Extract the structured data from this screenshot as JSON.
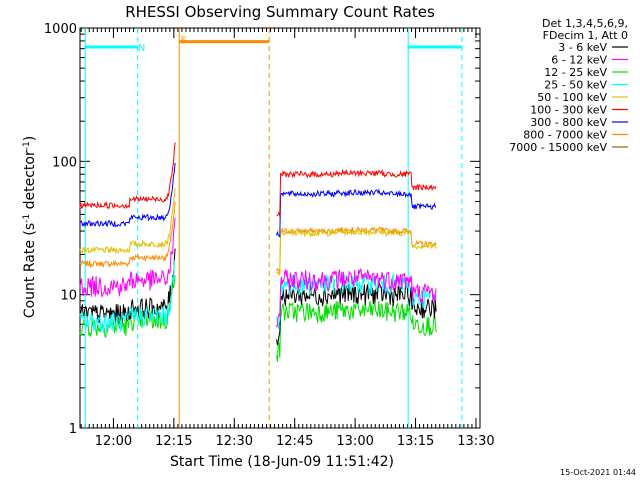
{
  "chart_data": {
    "type": "line",
    "title": "RHESSI Observing Summary Count Rates",
    "xlabel": "Start Time (18-Jun-09 11:51:42)",
    "ylabel_main": "Count Rate (s",
    "ylabel_sup1": "-1",
    "ylabel_mid": " detector",
    "ylabel_sup2": "-1",
    "ylabel_end": ")",
    "yscale": "log",
    "ylim": [
      1,
      1000
    ],
    "xlim": [
      "11:51:42",
      "13:31:00"
    ],
    "x_ticks": [
      {
        "t": "12:00",
        "label": "12:00"
      },
      {
        "t": "12:15",
        "label": "12:15"
      },
      {
        "t": "12:30",
        "label": "12:30"
      },
      {
        "t": "12:45",
        "label": "12:45"
      },
      {
        "t": "13:00",
        "label": "13:00"
      },
      {
        "t": "13:15",
        "label": "13:15"
      },
      {
        "t": "13:30",
        "label": "13:30"
      }
    ],
    "y_ticks": [
      {
        "v": 1,
        "label": "1"
      },
      {
        "v": 10,
        "label": "10"
      },
      {
        "v": 100,
        "label": "100"
      },
      {
        "v": 1000,
        "label": "1000"
      }
    ],
    "legend_header": [
      "Det 1,3,4,5,6,9,",
      "FDecim 1, Att 0"
    ],
    "series": [
      {
        "name": "3 - 6 keV",
        "color": "#000000"
      },
      {
        "name": "6 - 12 keV",
        "color": "#ff00ff"
      },
      {
        "name": "12 - 25 keV",
        "color": "#00e000"
      },
      {
        "name": "25 - 50 keV",
        "color": "#00ffff"
      },
      {
        "name": "50 - 100 keV",
        "color": "#e0c000"
      },
      {
        "name": "100 - 300 keV",
        "color": "#ff0000"
      },
      {
        "name": "300 - 800 keV",
        "color": "#0000ff"
      },
      {
        "name": "800 - 7000 keV",
        "color": "#ff8c00"
      },
      {
        "name": "7000 - 15000 keV",
        "color": "#8b6914"
      }
    ],
    "segments": [
      {
        "from": "11:51:42",
        "to": "12:15:20",
        "levels": [
          8,
          13,
          6.5,
          7,
          24,
          52,
          38,
          19,
          0
        ]
      },
      {
        "from": "12:40:30",
        "to": "13:20:10",
        "levels": [
          10,
          13,
          7.5,
          12,
          29,
          80,
          57,
          30,
          0
        ]
      }
    ],
    "annotations": [
      {
        "text": "N",
        "color": "#00ffff",
        "x": "12:07:00",
        "y": 720
      },
      {
        "text": "S",
        "color": "#ff8c00",
        "x": "12:17:30",
        "y": 820
      }
    ],
    "footer_date": "15-Oct-2021 01:44"
  }
}
